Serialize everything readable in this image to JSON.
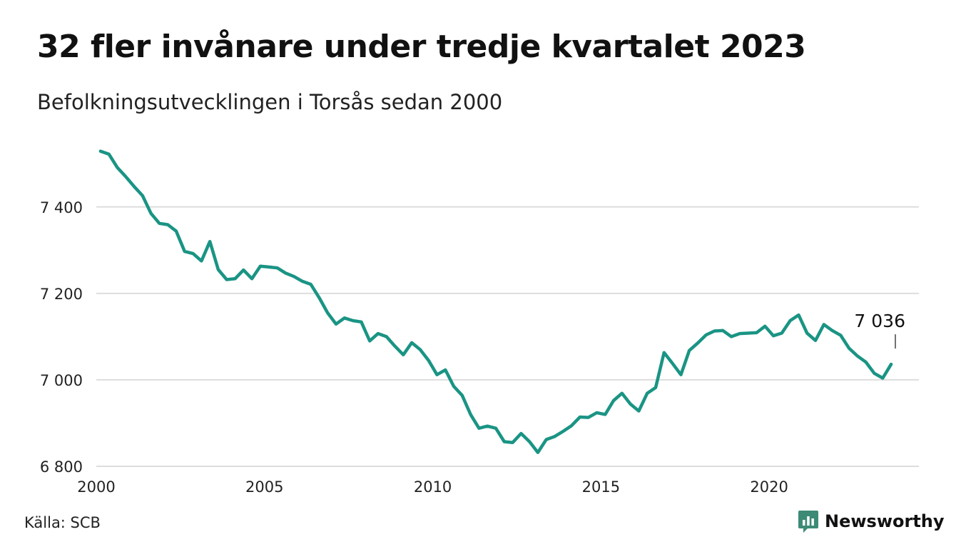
{
  "title": "32 fler invånare under tredje kvartalet 2023",
  "subtitle": "Befolkningsutvecklingen i Torsås sedan 2000",
  "source": "Källa: SCB",
  "brand": {
    "name": "Newsworthy",
    "color": "#3d8a76"
  },
  "colors": {
    "line": "#1a9484",
    "grid": "#dddddd"
  },
  "chart_data": {
    "type": "line",
    "title": "32 fler invånare under tredje kvartalet 2023",
    "subtitle": "Befolkningsutvecklingen i Torsås sedan 2000",
    "xlabel": "",
    "ylabel": "",
    "xlim": [
      2000,
      2024.45
    ],
    "ylim": [
      6800,
      7540
    ],
    "x_ticks": [
      {
        "value": 2000,
        "label": "2000"
      },
      {
        "value": 2005,
        "label": "2005"
      },
      {
        "value": 2010,
        "label": "2010"
      },
      {
        "value": 2015,
        "label": "2015"
      },
      {
        "value": 2020,
        "label": "2020"
      }
    ],
    "y_ticks": [
      {
        "value": 6800,
        "label": "6 800"
      },
      {
        "value": 7000,
        "label": "7 000"
      },
      {
        "value": 7200,
        "label": "7 200"
      },
      {
        "value": 7400,
        "label": "7 400"
      }
    ],
    "grid": true,
    "legend": "none",
    "annotation": {
      "label": "7 036",
      "x": 2023.75,
      "y": 7036
    },
    "series": [
      {
        "frequency": "quarterly",
        "start_year": 2000,
        "start_quarter": 1,
        "values": [
          7529,
          7522,
          7491,
          7470,
          7447,
          7426,
          7385,
          7362,
          7359,
          7344,
          7297,
          7292,
          7275,
          7320,
          7255,
          7232,
          7234,
          7254,
          7234,
          7263,
          7261,
          7259,
          7247,
          7239,
          7228,
          7221,
          7190,
          7155,
          7129,
          7143,
          7137,
          7134,
          7090,
          7107,
          7100,
          7078,
          7058,
          7086,
          7070,
          7045,
          7012,
          7023,
          6985,
          6964,
          6920,
          6888,
          6893,
          6888,
          6857,
          6855,
          6876,
          6857,
          6832,
          6862,
          6869,
          6881,
          6894,
          6914,
          6913,
          6924,
          6920,
          6952,
          6969,
          6944,
          6928,
          6969,
          6982,
          7063,
          7038,
          7012,
          7068,
          7085,
          7104,
          7113,
          7114,
          7100,
          7107,
          7108,
          7109,
          7124,
          7102,
          7108,
          7137,
          7150,
          7108,
          7091,
          7128,
          7114,
          7103,
          7073,
          7055,
          7041,
          7015,
          7004,
          7036
        ]
      }
    ]
  }
}
